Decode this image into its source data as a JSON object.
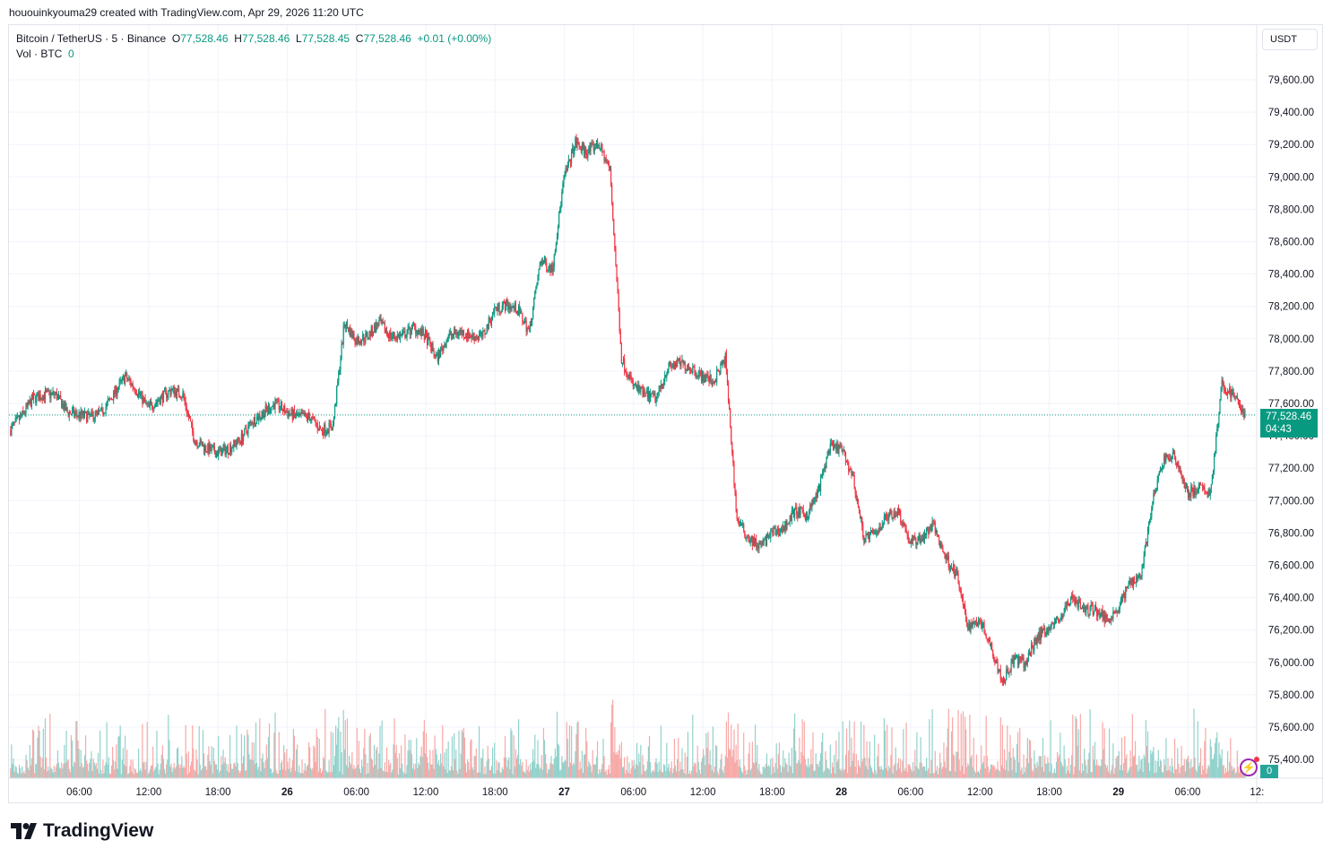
{
  "credit": "hououinkyouma29 created with TradingView.com, Apr 29, 2026 11:20 UTC",
  "legend": {
    "symbol": "Bitcoin / TetherUS · 5 · Binance",
    "o_label": "O",
    "o": "77,528.46",
    "h_label": "H",
    "h": "77,528.46",
    "l_label": "L",
    "l": "77,528.45",
    "c_label": "C",
    "c": "77,528.46",
    "change": "+0.01 (+0.00%)",
    "vol_label": "Vol · BTC",
    "vol": "0"
  },
  "currency": "USDT",
  "last_price": {
    "price": "77,528.46",
    "countdown": "04:43"
  },
  "vol_badge": "0",
  "logo": "TradingView",
  "colors": {
    "up": "#089981",
    "down": "#f23645",
    "vol_up": "#92d2cc",
    "vol_down": "#f7a9a7",
    "alert": "#9c27b0"
  },
  "chart_data": {
    "type": "candlestick",
    "symbol": "BTCUSDT",
    "interval": "5",
    "ylim": [
      75300,
      79750
    ],
    "y_ticks": [
      "79,600.00",
      "79,400.00",
      "79,200.00",
      "79,000.00",
      "78,800.00",
      "78,600.00",
      "78,400.00",
      "78,200.00",
      "78,000.00",
      "77,800.00",
      "77,600.00",
      "77,400.00",
      "77,200.00",
      "77,000.00",
      "76,800.00",
      "76,600.00",
      "76,400.00",
      "76,200.00",
      "76,000.00",
      "75,800.00",
      "75,600.00",
      "75,400.00"
    ],
    "y_tick_values": [
      79600,
      79400,
      79200,
      79000,
      78800,
      78600,
      78400,
      78200,
      78000,
      77800,
      77600,
      77400,
      77200,
      77000,
      76800,
      76600,
      76400,
      76200,
      76000,
      75800,
      75600,
      75400
    ],
    "x_ticks": [
      "06:00",
      "12:00",
      "18:00",
      "26",
      "06:00",
      "12:00",
      "18:00",
      "27",
      "06:00",
      "12:00",
      "18:00",
      "28",
      "06:00",
      "12:00",
      "18:00",
      "29",
      "06:00",
      "12:"
    ],
    "x_tick_hours": [
      6,
      12,
      18,
      24,
      30,
      36,
      42,
      48,
      54,
      60,
      66,
      72,
      78,
      84,
      90,
      96,
      102,
      108
    ],
    "x_range_hours": [
      0,
      108.6
    ],
    "grid": true,
    "last_price": 77528.46,
    "high": 79480,
    "low": 75660,
    "hourly_close": [
      77434,
      77517,
      77628,
      77655,
      77655,
      77545,
      77528,
      77517,
      77545,
      77655,
      77766,
      77683,
      77573,
      77628,
      77683,
      77655,
      77378,
      77323,
      77295,
      77323,
      77378,
      77489,
      77545,
      77600,
      77545,
      77517,
      77517,
      77434,
      77462,
      78099,
      77988,
      78016,
      78099,
      78016,
      78016,
      78071,
      78016,
      77877,
      78016,
      78043,
      78016,
      78016,
      78182,
      78209,
      78182,
      78043,
      78486,
      78430,
      78985,
      79207,
      79151,
      79207,
      79040,
      77877,
      77711,
      77655,
      77628,
      77822,
      77849,
      77822,
      77766,
      77738,
      77877,
      76880,
      76769,
      76714,
      76797,
      76825,
      76935,
      76907,
      77046,
      77323,
      77323,
      77157,
      76769,
      76797,
      76907,
      76935,
      76742,
      76769,
      76852,
      76658,
      76547,
      76215,
      76270,
      76104,
      75882,
      76021,
      75993,
      76159,
      76215,
      76270,
      76409,
      76326,
      76326,
      76270,
      76326,
      76492,
      76547,
      76990,
      77267,
      77267,
      77046,
      77074,
      77046,
      77711,
      77655,
      77528
    ]
  }
}
